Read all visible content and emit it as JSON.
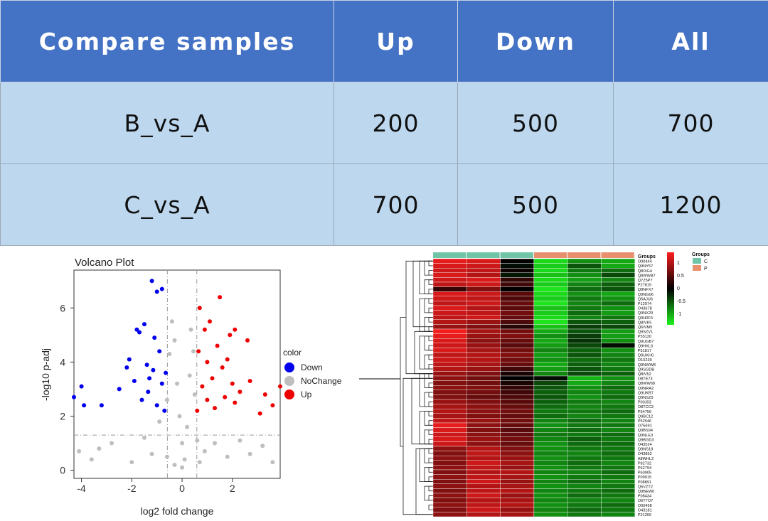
{
  "table": {
    "headers": [
      "Compare samples",
      "Up",
      "Down",
      "All"
    ],
    "rows": [
      [
        "B_vs_A",
        "200",
        "500",
        "700"
      ],
      [
        "C_vs_A",
        "700",
        "500",
        "1200"
      ]
    ]
  },
  "chart_data": [
    {
      "type": "scatter",
      "title": "Volcano Plot",
      "xlabel": "log2 fold change",
      "ylabel": "-log10 p-adj",
      "xlim": [
        -4.3,
        3.9
      ],
      "ylim": [
        -0.3,
        7.4
      ],
      "x_ticks": [
        "-4",
        "-2",
        "0",
        "2"
      ],
      "y_ticks": [
        "0",
        "2",
        "4",
        "6"
      ],
      "thresholds": {
        "fold_change": [
          -0.585,
          0.585
        ],
        "p_adj": 1.3
      },
      "grid": false,
      "legend": {
        "title": "color",
        "placement": "right",
        "entries": [
          "Down",
          "NoChange",
          "Up"
        ]
      },
      "colors": {
        "Down": "#0000ee",
        "NoChange": "#bebebe",
        "Up": "#ee0000"
      },
      "series": [
        {
          "name": "Down",
          "points": [
            [
              -4.3,
              2.7
            ],
            [
              -4.0,
              3.1
            ],
            [
              -3.9,
              2.4
            ],
            [
              -3.2,
              2.4
            ],
            [
              -2.5,
              3.0
            ],
            [
              -2.2,
              3.8
            ],
            [
              -2.1,
              4.1
            ],
            [
              -1.9,
              3.3
            ],
            [
              -1.8,
              5.2
            ],
            [
              -1.7,
              5.1
            ],
            [
              -1.5,
              5.4
            ],
            [
              -1.4,
              3.9
            ],
            [
              -1.3,
              3.4
            ],
            [
              -1.2,
              7.0
            ],
            [
              -1.1,
              4.9
            ],
            [
              -1.0,
              6.6
            ],
            [
              -1.0,
              2.4
            ],
            [
              -0.9,
              4.4
            ],
            [
              -0.8,
              6.7
            ],
            [
              -0.8,
              3.2
            ],
            [
              -0.7,
              2.2
            ],
            [
              -0.65,
              3.6
            ],
            [
              -1.6,
              2.6
            ],
            [
              -1.35,
              2.9
            ],
            [
              -1.15,
              3.7
            ]
          ]
        },
        {
          "name": "NoChange",
          "points": [
            [
              -4.1,
              0.7
            ],
            [
              -3.6,
              0.4
            ],
            [
              -3.3,
              0.8
            ],
            [
              -2.8,
              1.0
            ],
            [
              -2.0,
              0.3
            ],
            [
              -1.5,
              1.2
            ],
            [
              -1.2,
              0.6
            ],
            [
              -0.9,
              1.8
            ],
            [
              -0.6,
              2.6
            ],
            [
              -0.5,
              4.3
            ],
            [
              -0.4,
              5.5
            ],
            [
              -0.3,
              4.8
            ],
            [
              -0.2,
              3.2
            ],
            [
              -0.1,
              2.0
            ],
            [
              0.0,
              1.0
            ],
            [
              0.1,
              0.4
            ],
            [
              0.2,
              1.6
            ],
            [
              0.3,
              3.5
            ],
            [
              0.35,
              5.2
            ],
            [
              0.45,
              4.4
            ],
            [
              0.5,
              2.8
            ],
            [
              0.6,
              1.1
            ],
            [
              0.9,
              0.7
            ],
            [
              1.3,
              1.0
            ],
            [
              1.8,
              0.5
            ],
            [
              2.3,
              1.1
            ],
            [
              2.7,
              0.6
            ],
            [
              3.2,
              0.9
            ],
            [
              3.6,
              0.3
            ],
            [
              -0.3,
              0.2
            ],
            [
              0.0,
              0.1
            ],
            [
              -0.6,
              0.5
            ],
            [
              0.7,
              0.3
            ]
          ]
        },
        {
          "name": "Up",
          "points": [
            [
              0.6,
              2.2
            ],
            [
              0.65,
              4.4
            ],
            [
              0.7,
              6.0
            ],
            [
              0.8,
              3.1
            ],
            [
              0.9,
              5.2
            ],
            [
              1.0,
              2.6
            ],
            [
              1.0,
              4.0
            ],
            [
              1.1,
              5.5
            ],
            [
              1.2,
              3.4
            ],
            [
              1.3,
              2.3
            ],
            [
              1.4,
              4.6
            ],
            [
              1.5,
              6.4
            ],
            [
              1.6,
              3.8
            ],
            [
              1.7,
              2.7
            ],
            [
              1.8,
              4.1
            ],
            [
              1.9,
              5.0
            ],
            [
              2.0,
              3.2
            ],
            [
              2.1,
              2.5
            ],
            [
              2.3,
              2.9
            ],
            [
              2.6,
              4.8
            ],
            [
              2.7,
              3.3
            ],
            [
              3.1,
              2.1
            ],
            [
              3.3,
              2.8
            ],
            [
              3.6,
              2.4
            ],
            [
              3.9,
              3.1
            ],
            [
              2.1,
              5.2
            ]
          ]
        }
      ]
    },
    {
      "type": "heatmap",
      "columns": 6,
      "groups": {
        "title": "Groups",
        "labels": [
          "C",
          "P"
        ],
        "colors": {
          "C": "#6fc5a6",
          "P": "#e8906e"
        },
        "column_groups": [
          "C",
          "C",
          "C",
          "P",
          "P",
          "P"
        ]
      },
      "scale": {
        "ticks": [
          "1",
          "0.5",
          "0",
          "-0.5",
          "-1"
        ],
        "colors": [
          "#ff1e1e",
          "#000000",
          "#1ef01e"
        ]
      },
      "annotation_header": "Groups",
      "row_labels": [
        "O00444",
        "Q9NY57",
        "Q8IXG4",
        "Q8WWB7",
        "Q7Z5P7",
        "P27815",
        "Q8NFX7",
        "Q9NG06",
        "Q5AJU6",
        "P12074",
        "O43678",
        "Q9NX29",
        "Q9H0F6",
        "Q8IVK5",
        "Q6IVM5",
        "Q9SZV1",
        "P55120",
        "Q9UGB7",
        "Q9HXL6",
        "P51817",
        "Q9UKH0",
        "O15239",
        "Q9NWW8",
        "Q9SGDB",
        "Q8IV52",
        "O8TE73",
        "Q8WW68",
        "Q9NRA2",
        "Q9UKB7",
        "Q9NSZ9",
        "P00J03",
        "O8TCC3",
        "P54756",
        "Q9BC12",
        "P52546",
        "O75691",
        "Q9BS94",
        "Q9NLE3",
        "Q9BGD3",
        "O43524",
        "Q9NS18",
        "O43852",
        "A8WHL2",
        "P82732",
        "P62794",
        "P60905",
        "P09915",
        "P08891",
        "Q5VZT2",
        "Q9BEW0",
        "P08434",
        "O6T7O7",
        "O00458",
        "O43181",
        "P21266"
      ],
      "values": [
        [
          0.9,
          0.85,
          0.0,
          -0.9,
          -0.6,
          -0.7
        ],
        [
          0.85,
          0.8,
          -0.05,
          -0.85,
          -0.35,
          -0.7
        ],
        [
          0.8,
          0.75,
          0.05,
          -0.9,
          -0.5,
          -0.45
        ],
        [
          0.85,
          0.7,
          -0.1,
          -0.8,
          -0.6,
          -0.3
        ],
        [
          0.8,
          0.85,
          0.2,
          -0.9,
          -0.65,
          -0.55
        ],
        [
          0.75,
          0.8,
          0.25,
          -0.85,
          -0.55,
          -0.4
        ],
        [
          0.2,
          0.5,
          0.0,
          -0.95,
          -0.45,
          -0.35
        ],
        [
          0.85,
          0.8,
          0.35,
          -0.9,
          -0.6,
          -0.7
        ],
        [
          0.8,
          0.75,
          0.3,
          -0.85,
          -0.5,
          -0.6
        ],
        [
          0.75,
          0.8,
          0.4,
          -0.95,
          -0.55,
          -0.45
        ],
        [
          0.85,
          0.7,
          0.35,
          -0.8,
          -0.5,
          -0.6
        ],
        [
          0.8,
          0.75,
          0.45,
          -0.85,
          -0.45,
          -0.65
        ],
        [
          0.75,
          0.8,
          0.4,
          -0.9,
          -0.55,
          -0.5
        ],
        [
          0.7,
          0.6,
          0.3,
          -0.95,
          -0.35,
          -0.4
        ],
        [
          0.6,
          0.5,
          0.15,
          -0.8,
          -0.25,
          -0.3
        ],
        [
          0.95,
          0.65,
          0.45,
          -0.7,
          -0.35,
          -0.65
        ],
        [
          0.9,
          0.6,
          0.5,
          -0.6,
          -0.25,
          -0.65
        ],
        [
          0.85,
          0.55,
          0.4,
          -0.7,
          -0.2,
          -0.6
        ],
        [
          0.8,
          0.6,
          0.35,
          -0.65,
          -0.3,
          -0.05
        ],
        [
          0.85,
          0.65,
          0.45,
          -0.55,
          -0.4,
          -0.6
        ],
        [
          0.75,
          0.7,
          0.5,
          -0.65,
          -0.35,
          -0.55
        ],
        [
          0.8,
          0.7,
          0.45,
          -0.6,
          -0.45,
          -0.5
        ],
        [
          0.75,
          0.65,
          0.4,
          -0.7,
          -0.4,
          -0.55
        ],
        [
          0.7,
          0.6,
          0.25,
          -0.65,
          -0.35,
          -0.5
        ],
        [
          0.6,
          0.5,
          0.1,
          -0.55,
          -0.3,
          -0.4
        ],
        [
          0.55,
          0.45,
          0.0,
          -0.05,
          -0.75,
          -0.6
        ],
        [
          0.5,
          0.45,
          0.1,
          -0.3,
          -0.7,
          -0.55
        ],
        [
          0.55,
          0.5,
          0.2,
          -0.35,
          -0.6,
          -0.45
        ],
        [
          0.5,
          0.45,
          0.25,
          -0.4,
          -0.55,
          -0.5
        ],
        [
          0.5,
          0.4,
          0.3,
          -0.35,
          -0.6,
          -0.45
        ],
        [
          0.6,
          0.5,
          0.35,
          -0.4,
          -0.5,
          -0.55
        ],
        [
          0.65,
          0.55,
          0.4,
          -0.45,
          -0.55,
          -0.5
        ],
        [
          0.7,
          0.55,
          0.45,
          -0.5,
          -0.5,
          -0.45
        ],
        [
          0.65,
          0.5,
          0.4,
          -0.45,
          -0.55,
          -0.5
        ],
        [
          0.75,
          0.6,
          0.45,
          -0.55,
          -0.45,
          -0.55
        ],
        [
          0.9,
          0.55,
          0.4,
          -0.6,
          -0.5,
          -0.5
        ],
        [
          0.85,
          0.5,
          0.35,
          -0.55,
          -0.45,
          -0.55
        ],
        [
          0.8,
          0.55,
          0.4,
          -0.5,
          -0.5,
          -0.45
        ],
        [
          0.85,
          0.6,
          0.45,
          -0.55,
          -0.4,
          -0.5
        ],
        [
          0.8,
          0.55,
          0.4,
          -0.6,
          -0.45,
          -0.45
        ],
        [
          0.55,
          0.7,
          0.5,
          -0.6,
          -0.5,
          -0.5
        ],
        [
          0.5,
          0.75,
          0.55,
          -0.55,
          -0.55,
          -0.45
        ],
        [
          0.55,
          0.7,
          0.6,
          -0.6,
          -0.5,
          -0.5
        ],
        [
          0.5,
          0.8,
          0.65,
          -0.55,
          -0.45,
          -0.55
        ],
        [
          0.55,
          0.75,
          0.6,
          -0.6,
          -0.5,
          -0.5
        ],
        [
          0.5,
          0.7,
          0.7,
          -0.55,
          -0.55,
          -0.45
        ],
        [
          0.55,
          0.75,
          0.65,
          -0.6,
          -0.5,
          -0.5
        ],
        [
          0.5,
          0.8,
          0.6,
          -0.55,
          -0.45,
          -0.55
        ],
        [
          0.55,
          0.7,
          0.65,
          -0.6,
          -0.55,
          -0.5
        ],
        [
          0.5,
          0.75,
          0.7,
          -0.55,
          -0.5,
          -0.45
        ],
        [
          0.55,
          0.8,
          0.6,
          -0.6,
          -0.45,
          -0.5
        ],
        [
          0.5,
          0.7,
          0.65,
          -0.55,
          -0.55,
          -0.55
        ],
        [
          0.55,
          0.75,
          0.7,
          -0.6,
          -0.5,
          -0.45
        ],
        [
          0.5,
          0.8,
          0.6,
          -0.55,
          -0.45,
          -0.5
        ],
        [
          0.55,
          0.7,
          0.65,
          -0.6,
          -0.5,
          -0.55
        ]
      ]
    }
  ]
}
